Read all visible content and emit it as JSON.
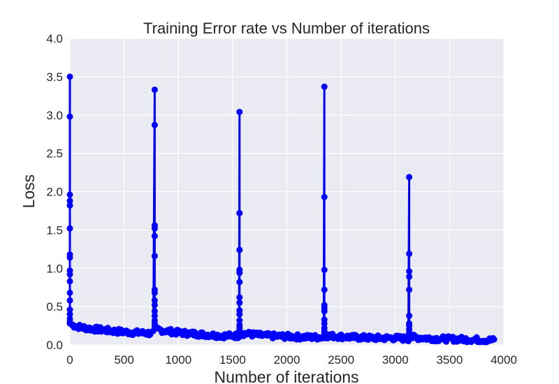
{
  "chart_data": {
    "type": "line",
    "title": "Training Error rate vs Number of iterations",
    "xlabel": "Number of iterations",
    "ylabel": "Loss",
    "xlim": [
      0,
      4000
    ],
    "ylim": [
      0.0,
      4.0
    ],
    "xticks": [
      0,
      500,
      1000,
      1500,
      2000,
      2500,
      3000,
      3500,
      4000
    ],
    "xtick_labels": [
      "0",
      "500",
      "1000",
      "1500",
      "2000",
      "2500",
      "3000",
      "3500",
      "4000"
    ],
    "yticks": [
      0.0,
      0.5,
      1.0,
      1.5,
      2.0,
      2.5,
      3.0,
      3.5,
      4.0
    ],
    "ytick_labels": [
      "0.0",
      "0.5",
      "1.0",
      "1.5",
      "2.0",
      "2.5",
      "3.0",
      "3.5",
      "4.0"
    ],
    "grid": true,
    "background": "#EAEAF2",
    "grid_color": "#FFFFFF",
    "series": [
      {
        "color": "#0000FF",
        "marker": "circle",
        "x_max": 3910,
        "restart_epochs": [
          {
            "x": 0,
            "values": [
              3.5,
              2.98,
              1.96,
              1.88,
              1.82,
              1.52,
              1.18,
              1.14,
              0.97,
              0.92,
              0.83,
              0.68,
              0.58,
              0.46,
              0.4,
              0.34,
              0.3,
              0.28
            ]
          },
          {
            "x": 782,
            "values": [
              3.33,
              2.87,
              1.56,
              1.52,
              1.42,
              1.16,
              0.72,
              0.68,
              0.58,
              0.52,
              0.44,
              0.38,
              0.32,
              0.28,
              0.24
            ]
          },
          {
            "x": 1564,
            "values": [
              3.04,
              1.72,
              1.24,
              0.98,
              0.94,
              0.82,
              0.62,
              0.55,
              0.45,
              0.4,
              0.32,
              0.26,
              0.22,
              0.19
            ]
          },
          {
            "x": 2346,
            "values": [
              3.37,
              1.93,
              0.98,
              0.72,
              0.52,
              0.48,
              0.44,
              0.33,
              0.28,
              0.22,
              0.18,
              0.15
            ]
          },
          {
            "x": 3128,
            "values": [
              2.19,
              1.19,
              0.96,
              0.89,
              0.72,
              0.38,
              0.28,
              0.25,
              0.2,
              0.16,
              0.13
            ]
          }
        ],
        "baseline_anchors": [
          [
            20,
            0.26
          ],
          [
            100,
            0.23
          ],
          [
            200,
            0.21
          ],
          [
            400,
            0.18
          ],
          [
            600,
            0.16
          ],
          [
            775,
            0.15
          ],
          [
            800,
            0.2
          ],
          [
            1000,
            0.16
          ],
          [
            1200,
            0.14
          ],
          [
            1400,
            0.12
          ],
          [
            1555,
            0.12
          ],
          [
            1590,
            0.15
          ],
          [
            1800,
            0.12
          ],
          [
            2000,
            0.11
          ],
          [
            2200,
            0.1
          ],
          [
            2340,
            0.1
          ],
          [
            2370,
            0.12
          ],
          [
            2600,
            0.1
          ],
          [
            2800,
            0.09
          ],
          [
            3000,
            0.09
          ],
          [
            3120,
            0.08
          ],
          [
            3150,
            0.1
          ],
          [
            3400,
            0.08
          ],
          [
            3700,
            0.07
          ],
          [
            3910,
            0.06
          ]
        ]
      }
    ]
  }
}
